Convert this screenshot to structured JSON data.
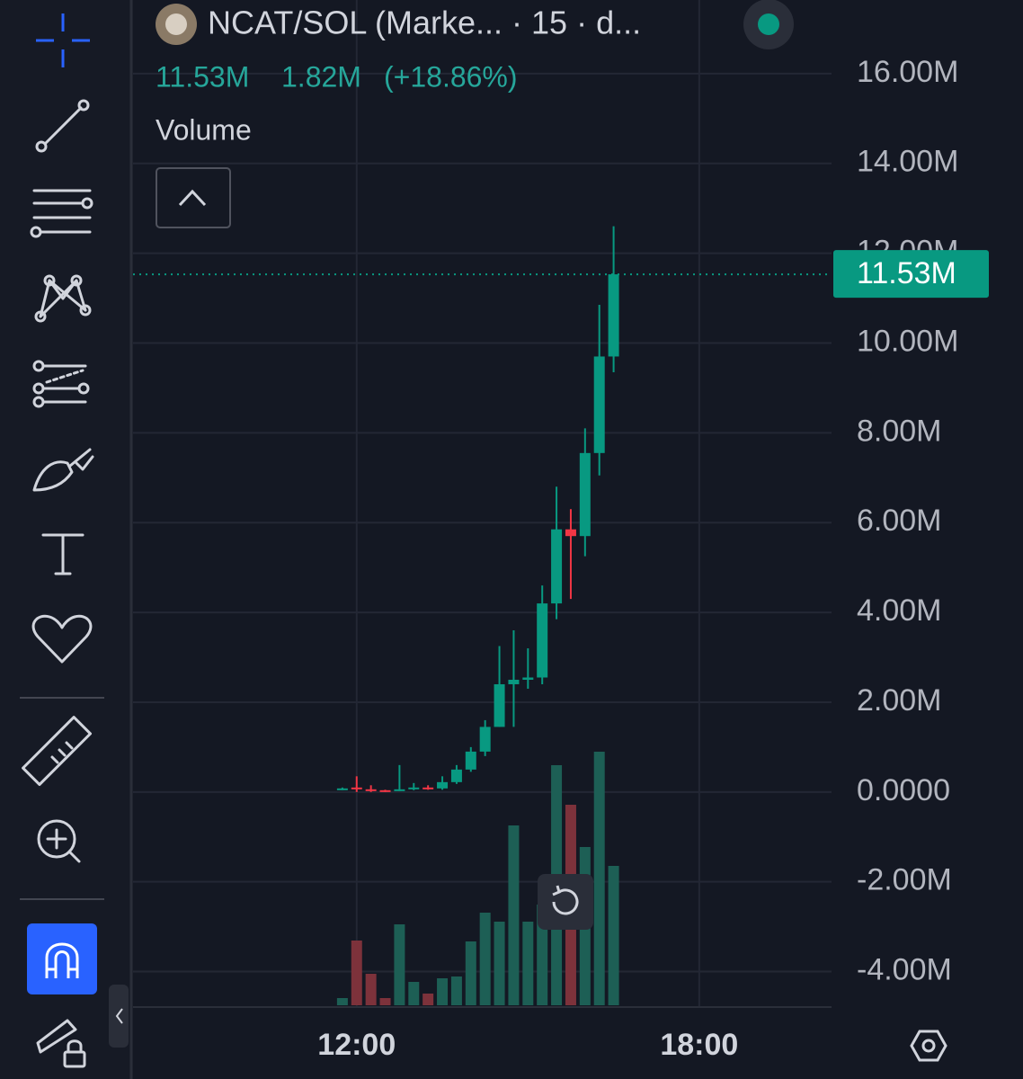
{
  "header": {
    "symbol": "NCAT/SOL (Marke... · 15 · d...",
    "last": "11.53M",
    "change": "1.82M",
    "change_pct": "(+18.86%)",
    "indicator": "Volume"
  },
  "chart_data": {
    "type": "candlestick",
    "x": [
      "11:45",
      "12:00",
      "12:15",
      "12:30",
      "12:45",
      "13:00",
      "13:15",
      "13:30",
      "13:45",
      "14:00",
      "14:15",
      "14:30",
      "14:45",
      "15:00",
      "15:15",
      "15:30",
      "15:45",
      "16:00",
      "16:15",
      "16:30"
    ],
    "open": [
      50000,
      100000,
      60000,
      40000,
      30000,
      60000,
      100000,
      80000,
      220000,
      500000,
      900000,
      1450000,
      2400000,
      2500000,
      2550000,
      4200000,
      5850000,
      5700000,
      7550000,
      9700000
    ],
    "high": [
      100000,
      350000,
      150000,
      50000,
      600000,
      200000,
      150000,
      350000,
      600000,
      1000000,
      1600000,
      3250000,
      3600000,
      3200000,
      4600000,
      6800000,
      6300000,
      8100000,
      10850000,
      12600000
    ],
    "low": [
      40000,
      0,
      0,
      0,
      20000,
      40000,
      50000,
      50000,
      180000,
      450000,
      800000,
      1450000,
      1450000,
      2300000,
      2400000,
      3850000,
      4300000,
      5250000,
      7050000,
      9350000
    ],
    "close": [
      80000,
      60000,
      40000,
      20000,
      60000,
      100000,
      70000,
      220000,
      500000,
      900000,
      1450000,
      2400000,
      2500000,
      2550000,
      4200000,
      5850000,
      5700000,
      7550000,
      9700000,
      11530000
    ],
    "volume": [
      8,
      72,
      35,
      8,
      90,
      26,
      13,
      30,
      32,
      71,
      103,
      93,
      200,
      93,
      112,
      267,
      223,
      176,
      282,
      155
    ],
    "up_color": "#089981",
    "down_color": "#f23645",
    "volume_up_color": "#1d5f55",
    "volume_down_color": "#7d323b",
    "xlim": [
      "08:05",
      "20:19"
    ],
    "xticks": [
      "12:00",
      "18:00"
    ],
    "ylim": [
      -4790000,
      17640000
    ],
    "yticks": [
      {
        "value": -4000000,
        "label": "-4.00M"
      },
      {
        "value": -2000000,
        "label": "-2.00M"
      },
      {
        "value": 0,
        "label": "0.0000"
      },
      {
        "value": 2000000,
        "label": "2.00M"
      },
      {
        "value": 4000000,
        "label": "4.00M"
      },
      {
        "value": 6000000,
        "label": "6.00M"
      },
      {
        "value": 8000000,
        "label": "8.00M"
      },
      {
        "value": 10000000,
        "label": "10.00M"
      },
      {
        "value": 12000000,
        "label": "12.00M"
      },
      {
        "value": 14000000,
        "label": "14.00M"
      },
      {
        "value": 16000000,
        "label": "16.00M"
      }
    ],
    "price_line": {
      "value": 11530000,
      "label": "11.53M"
    },
    "grid": true
  }
}
